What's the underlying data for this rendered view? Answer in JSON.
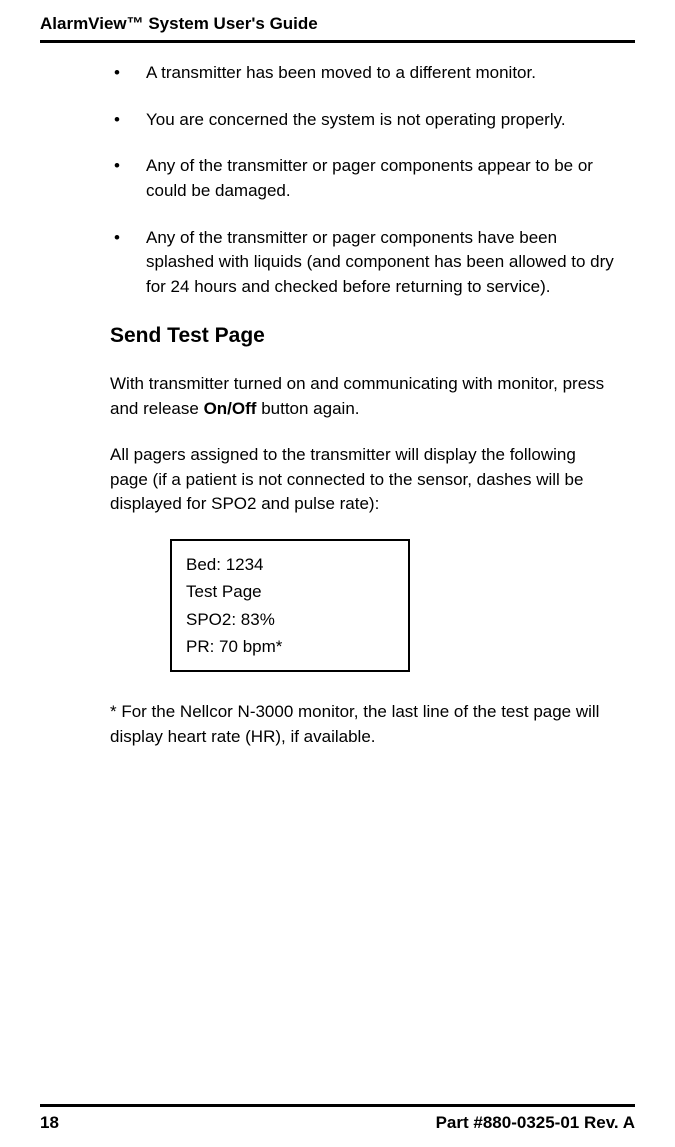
{
  "header": {
    "title": "AlarmView™ System User's Guide"
  },
  "bullets": [
    "A transmitter has been moved to a different monitor.",
    "You are concerned the system is not operating properly.",
    "Any of the transmitter or pager components appear to be or could be damaged.",
    "Any of the transmitter or pager components have been splashed with liquids (and component has been allowed to dry for 24 hours and checked before returning to service)."
  ],
  "section": {
    "title": "Send Test Page"
  },
  "para1": {
    "pre": "With transmitter turned on and communicating with monitor, press and release ",
    "bold": "On/Off",
    "post": " button again."
  },
  "para2": "All pagers assigned to the transmitter will display the following page (if a patient is not connected to the sensor, dashes will be displayed for SPO2 and pulse rate):",
  "display": {
    "line1": "Bed: 1234",
    "line2": "Test Page",
    "line3": "SPO2: 83%",
    "line4": "PR: 70 bpm*"
  },
  "footnote": "* For the Nellcor N-3000 monitor, the last line of the test page will display heart rate (HR), if available.",
  "footer": {
    "page": "18",
    "part": "Part #880-0325-01 Rev. A"
  }
}
